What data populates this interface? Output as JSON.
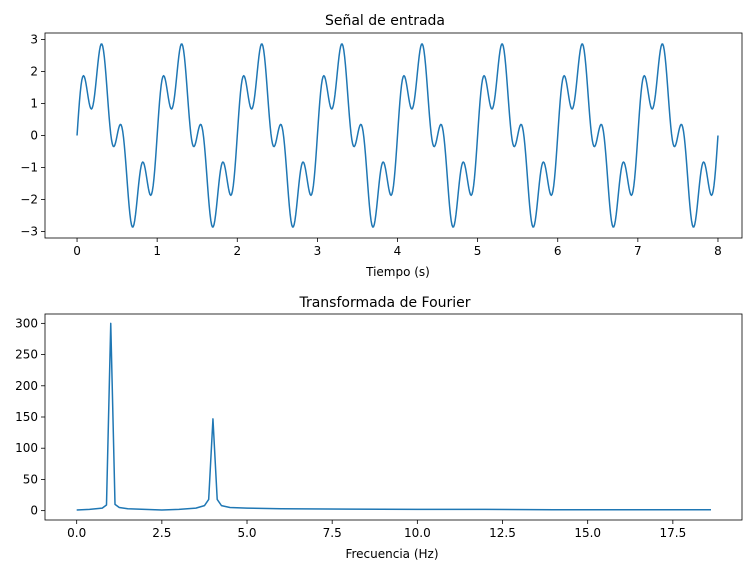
{
  "chart_data": [
    {
      "type": "line",
      "title": "Señal de entrada",
      "xlabel": "Tiempo (s)",
      "ylabel": "",
      "xlim": [
        -0.4,
        8.3
      ],
      "ylim": [
        -3.2,
        3.2
      ],
      "xticks": [
        0,
        1,
        2,
        3,
        4,
        5,
        6,
        7,
        8
      ],
      "xtick_labels": [
        "0",
        "1",
        "2",
        "3",
        "4",
        "5",
        "6",
        "7",
        "8"
      ],
      "yticks": [
        -3,
        -2,
        -1,
        0,
        1,
        2,
        3
      ],
      "ytick_labels": [
        "−3",
        "−2",
        "−1",
        "0",
        "1",
        "2",
        "3"
      ],
      "grid": false,
      "color": "#1f77b4",
      "series": [
        {
          "x": [
            0,
            0.05,
            0.1,
            0.15,
            0.2,
            0.25,
            0.3,
            0.35,
            0.4,
            0.45,
            0.5,
            0.55,
            0.6,
            0.65,
            0.7,
            0.75,
            0.8,
            0.85,
            0.9,
            0.95,
            1.0
          ],
          "y": [
            0.0,
            1.52,
            1.84,
            1.0,
            0.96,
            2.24,
            2.85,
            1.99,
            0.32,
            -0.3,
            -0.08,
            0.31,
            0.08,
            -1.25,
            -2.51,
            -2.83,
            -1.97,
            -0.88,
            -0.78,
            -1.62,
            -1.8
          ],
          "periodic_sum_of_sines": {
            "components": [
              {
                "amplitude": 2,
                "frequency_hz": 1
              },
              {
                "amplitude": 1,
                "frequency_hz": 4
              }
            ],
            "duration_s": 8
          }
        }
      ]
    },
    {
      "type": "line",
      "title": "Transformada de Fourier",
      "xlabel": "Frecuencia (Hz)",
      "ylabel": "",
      "xlim": [
        -0.93,
        19.53
      ],
      "ylim": [
        -15,
        315
      ],
      "xticks": [
        0,
        2.5,
        5,
        7.5,
        10,
        12.5,
        15,
        17.5
      ],
      "xtick_labels": [
        "0.0",
        "2.5",
        "5.0",
        "7.5",
        "10.0",
        "12.5",
        "15.0",
        "17.5"
      ],
      "yticks": [
        0,
        50,
        100,
        150,
        200,
        250,
        300
      ],
      "ytick_labels": [
        "0",
        "50",
        "100",
        "150",
        "200",
        "250",
        "300"
      ],
      "grid": false,
      "color": "#1f77b4",
      "series": [
        {
          "x": [
            0,
            0.375,
            0.75,
            0.875,
            1.0,
            1.125,
            1.25,
            1.5,
            2.0,
            2.5,
            3.0,
            3.5,
            3.75,
            3.875,
            4.0,
            4.125,
            4.25,
            4.5,
            5.0,
            6.0,
            8.0,
            10.0,
            12.0,
            14.0,
            16.0,
            18.62
          ],
          "y": [
            1,
            2,
            4,
            9,
            300,
            10,
            5,
            3,
            2,
            1,
            2,
            4,
            8,
            18,
            147,
            18,
            8,
            5,
            4,
            3,
            2.5,
            2,
            2,
            1.5,
            1.5,
            1.5
          ]
        }
      ]
    }
  ]
}
